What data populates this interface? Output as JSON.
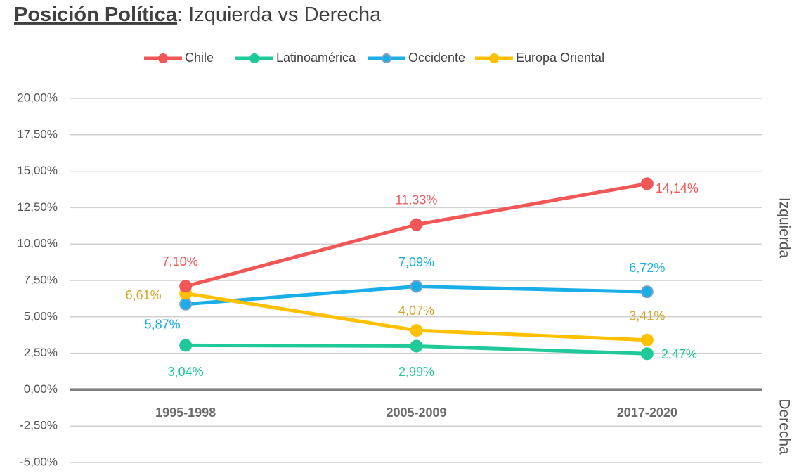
{
  "chart_data": {
    "type": "line",
    "title_bold": "Posición Política",
    "title_rest": ": Izquierda vs Derecha",
    "right_labels": [
      "Izquierda",
      "Derecha"
    ],
    "categories": [
      "1995-1998",
      "2005-2009",
      "2017-2020"
    ],
    "series": [
      {
        "name": "Chile",
        "color": "#f25757",
        "label_color": "#f25757",
        "values": [
          7.1,
          11.33,
          14.14
        ],
        "value_labels": [
          "7,10%",
          "11,33%",
          "14,14%"
        ]
      },
      {
        "name": "Latinoamérica",
        "color": "#1fc99a",
        "label_color": "#1fc99a",
        "values": [
          3.04,
          2.99,
          2.47
        ],
        "value_labels": [
          "3,04%",
          "2,99%",
          "2,47%"
        ]
      },
      {
        "name": "Occidente",
        "color": "#1aaee8",
        "label_color": "#1aaee8",
        "values": [
          5.87,
          7.09,
          6.72
        ],
        "value_labels": [
          "5,87%",
          "7,09%",
          "6,72%"
        ]
      },
      {
        "name": "Europa Oriental",
        "color": "#ffc000",
        "label_color": "#d4a72c",
        "values": [
          6.61,
          4.07,
          3.41
        ],
        "value_labels": [
          "6,61%",
          "4,07%",
          "3,41%"
        ]
      }
    ],
    "ylim": [
      -5,
      20
    ],
    "yticks": [
      {
        "value": -5,
        "label": "-5,00%"
      },
      {
        "value": -2.5,
        "label": "-2,50%"
      },
      {
        "value": 0,
        "label": "0,00%"
      },
      {
        "value": 2.5,
        "label": "2,50%"
      },
      {
        "value": 5,
        "label": "5,00%"
      },
      {
        "value": 7.5,
        "label": "7,50%"
      },
      {
        "value": 10,
        "label": "10,00%"
      },
      {
        "value": 12.5,
        "label": "12,50%"
      },
      {
        "value": 15,
        "label": "15,00%"
      },
      {
        "value": 17.5,
        "label": "17,50%"
      },
      {
        "value": 20,
        "label": "20,00%"
      }
    ],
    "grid": true
  }
}
